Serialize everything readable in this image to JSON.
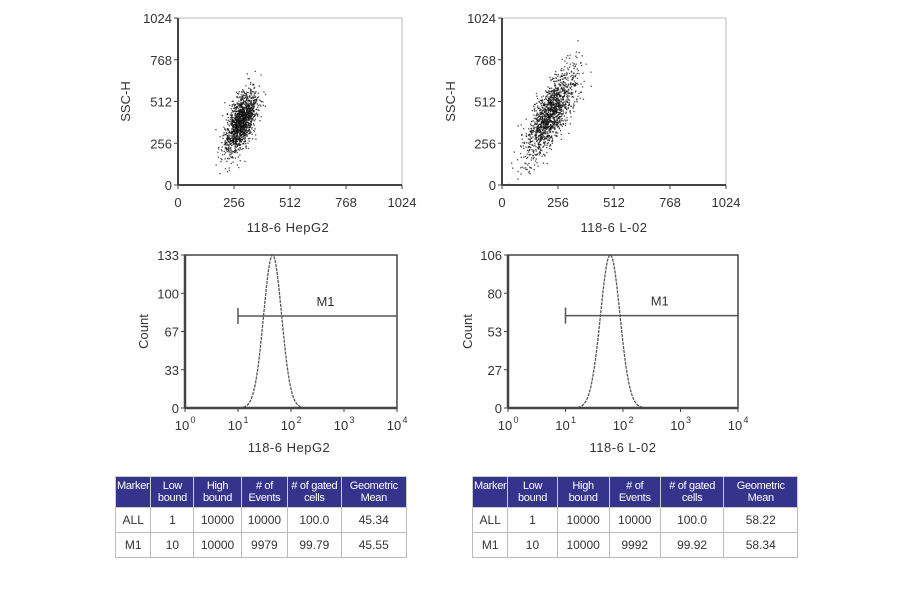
{
  "chart_data": [
    {
      "type": "scatter",
      "xlabel": "118-6 HepG2",
      "ylabel": "SSC-H",
      "xlim": [
        0,
        1024
      ],
      "ylim": [
        0,
        1024
      ],
      "xticks": [
        "0",
        "256",
        "512",
        "768",
        "1024"
      ],
      "yticks": [
        "0",
        "256",
        "512",
        "768",
        "1024"
      ],
      "cluster": {
        "center": [
          285,
          390
        ],
        "spread": [
          35,
          90
        ],
        "tilt": 0.9
      }
    },
    {
      "type": "scatter",
      "xlabel": "118-6 L-02",
      "ylabel": "SSC-H",
      "xlim": [
        0,
        1024
      ],
      "ylim": [
        0,
        1024
      ],
      "xticks": [
        "0",
        "256",
        "512",
        "768",
        "1024"
      ],
      "yticks": [
        "0",
        "256",
        "512",
        "768",
        "1024"
      ],
      "cluster": {
        "center": [
          220,
          440
        ],
        "spread": [
          55,
          110
        ],
        "tilt": 1.2
      }
    },
    {
      "type": "area",
      "xlabel": "118-6 HepG2",
      "ylabel": "Count",
      "xscale": "log",
      "xlim": [
        1,
        10000
      ],
      "ylim": [
        0,
        133
      ],
      "xticks": [
        "10",
        "10",
        "10",
        "10",
        "10"
      ],
      "xtick_exponents": [
        "0",
        "1",
        "2",
        "3",
        "4"
      ],
      "yticks": [
        "0",
        "33",
        "67",
        "100",
        "133"
      ],
      "peak": {
        "x": 45,
        "height": 133
      },
      "marker": {
        "label": "M1",
        "from": 10,
        "to": 10000,
        "y": 80
      }
    },
    {
      "type": "area",
      "xlabel": "118-6 L-02",
      "ylabel": "Count",
      "xscale": "log",
      "xlim": [
        1,
        10000
      ],
      "ylim": [
        0,
        106
      ],
      "xticks": [
        "10",
        "10",
        "10",
        "10",
        "10"
      ],
      "xtick_exponents": [
        "0",
        "1",
        "2",
        "3",
        "4"
      ],
      "yticks": [
        "0",
        "27",
        "53",
        "80",
        "106"
      ],
      "peak": {
        "x": 60,
        "height": 106
      },
      "marker": {
        "label": "M1",
        "from": 10,
        "to": 10000,
        "y": 64
      }
    }
  ],
  "tables": [
    {
      "headers": [
        "Marker",
        "Low bound",
        "High bound",
        "# of Events",
        "# of gated cells",
        "Geometric Mean"
      ],
      "rows": [
        [
          "ALL",
          "1",
          "10000",
          "10000",
          "100.0",
          "45.34"
        ],
        [
          "M1",
          "10",
          "10000",
          "9979",
          "99.79",
          "45.55"
        ]
      ]
    },
    {
      "headers": [
        "Marker",
        "Low bound",
        "High bound",
        "# of Events",
        "# of gated cells",
        "Geometric Mean"
      ],
      "rows": [
        [
          "ALL",
          "1",
          "10000",
          "10000",
          "100.0",
          "58.22"
        ],
        [
          "M1",
          "10",
          "10000",
          "9992",
          "99.92",
          "58.34"
        ]
      ]
    }
  ],
  "colors": {
    "table_header": "#34348c",
    "axis": "#444444",
    "points": "#111111"
  }
}
